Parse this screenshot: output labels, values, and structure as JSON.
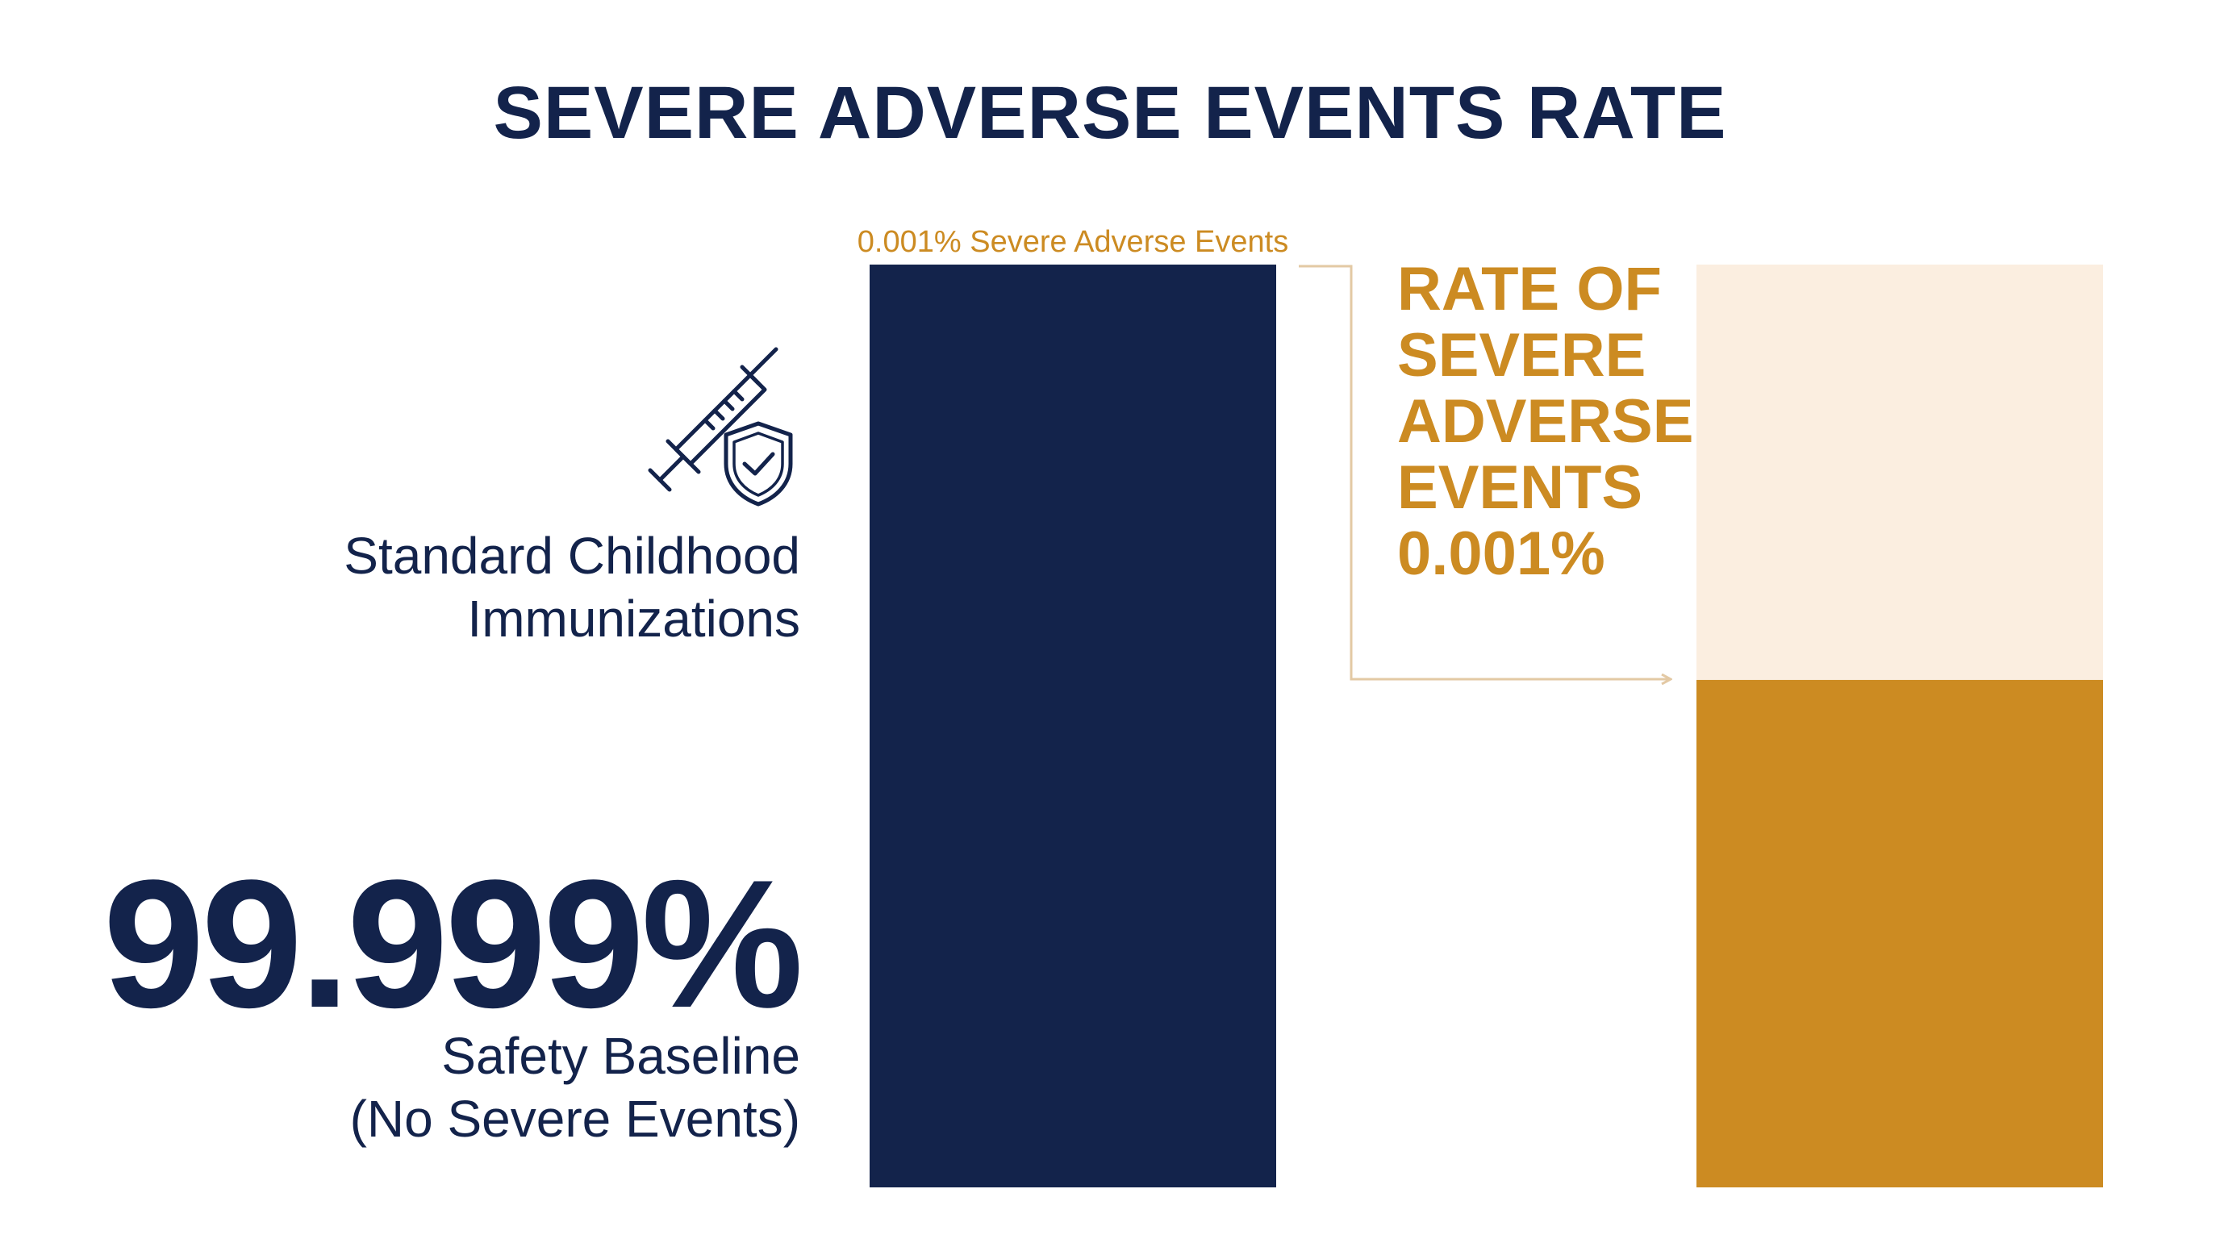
{
  "colors": {
    "navy": "#13234b",
    "gold": "#cc8b22",
    "cream": "#fbeee0",
    "arrow": "#e3c9a4"
  },
  "icon": "syringe-shield-check-icon",
  "left_panel": {
    "program_label_lines": [
      "Standard Childhood",
      "Immunizations"
    ],
    "big_value": "99.999%",
    "baseline_label_lines": [
      "Safety Baseline",
      "(No Severe Events)"
    ]
  },
  "chart_data": {
    "type": "bar",
    "title": "SEVERE ADVERSE EVENTS RATE",
    "xlabel": "",
    "ylabel": "",
    "ylim": [
      0,
      100
    ],
    "bars": [
      {
        "segments": [
          {
            "value": 99.999,
            "color": "#13234b"
          },
          {
            "value": 0.001,
            "color": "#cc8b22"
          }
        ],
        "top_label": "0.001% Severe Adverse Events"
      },
      {
        "segments": [
          {
            "value": 55,
            "color": "#cc8b22"
          },
          {
            "value": 45,
            "color": "#fbeee0"
          }
        ]
      }
    ],
    "annotation": {
      "lines": [
        "RATE OF",
        "SEVERE",
        "ADVERSE",
        "EVENTS",
        "0.001%"
      ]
    }
  }
}
